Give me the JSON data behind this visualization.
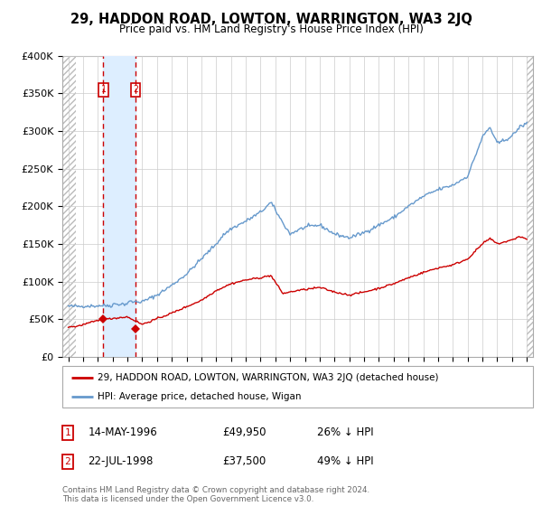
{
  "title": "29, HADDON ROAD, LOWTON, WARRINGTON, WA3 2JQ",
  "subtitle": "Price paid vs. HM Land Registry's House Price Index (HPI)",
  "footer": "Contains HM Land Registry data © Crown copyright and database right 2024.\nThis data is licensed under the Open Government Licence v3.0.",
  "legend_line1": "29, HADDON ROAD, LOWTON, WARRINGTON, WA3 2JQ (detached house)",
  "legend_line2": "HPI: Average price, detached house, Wigan",
  "transaction1_date": "14-MAY-1996",
  "transaction1_price": "£49,950",
  "transaction1_hpi": "26% ↓ HPI",
  "transaction2_date": "22-JUL-1998",
  "transaction2_price": "£37,500",
  "transaction2_hpi": "49% ↓ HPI",
  "hpi_color": "#6699cc",
  "price_color": "#cc0000",
  "marker_color": "#cc0000",
  "shade_color": "#ddeeff",
  "grid_color": "#cccccc",
  "ylim": [
    0,
    400000
  ],
  "yticks": [
    0,
    50000,
    100000,
    150000,
    200000,
    250000,
    300000,
    350000,
    400000
  ],
  "transaction1_x": 1996.37,
  "transaction1_y": 49950,
  "transaction2_x": 1998.55,
  "transaction2_y": 37500,
  "xlim_left": 1993.6,
  "xlim_right": 2025.4
}
